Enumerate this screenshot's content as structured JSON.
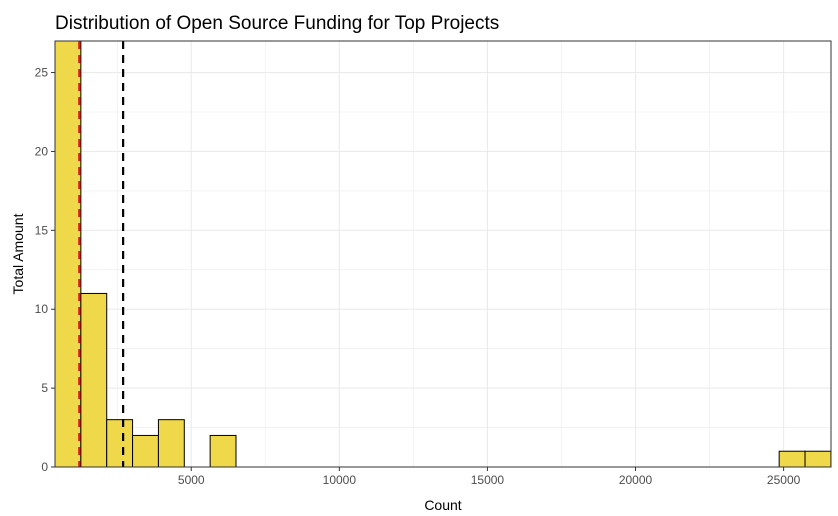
{
  "chart_data": {
    "type": "histogram",
    "title": "Distribution of Open Source Funding for Top Projects",
    "xlabel": "Count",
    "ylabel": "Total Amount",
    "xlim": [
      400,
      26600
    ],
    "ylim": [
      0,
      27
    ],
    "x_ticks": [
      5000,
      10000,
      15000,
      20000,
      25000
    ],
    "y_ticks": [
      0,
      5,
      10,
      15,
      20,
      25
    ],
    "bin_width": 873,
    "bins": [
      {
        "x_start": 400,
        "x_end": 1273,
        "count": 27
      },
      {
        "x_start": 1273,
        "x_end": 2146,
        "count": 11
      },
      {
        "x_start": 2146,
        "x_end": 3019,
        "count": 3
      },
      {
        "x_start": 3019,
        "x_end": 3892,
        "count": 2
      },
      {
        "x_start": 3892,
        "x_end": 4765,
        "count": 3
      },
      {
        "x_start": 4765,
        "x_end": 5638,
        "count": 0
      },
      {
        "x_start": 5638,
        "x_end": 6511,
        "count": 2
      },
      {
        "x_start": 24850,
        "x_end": 25723,
        "count": 1
      },
      {
        "x_start": 25723,
        "x_end": 26596,
        "count": 1
      }
    ],
    "reference_lines": [
      {
        "x": 1220,
        "color": "#e41a1c",
        "style": "dashed"
      },
      {
        "x": 2700,
        "color": "#000000",
        "style": "dashed"
      }
    ],
    "bar_fill": "#f0d84b",
    "bar_stroke": "#000000",
    "grid": true
  }
}
